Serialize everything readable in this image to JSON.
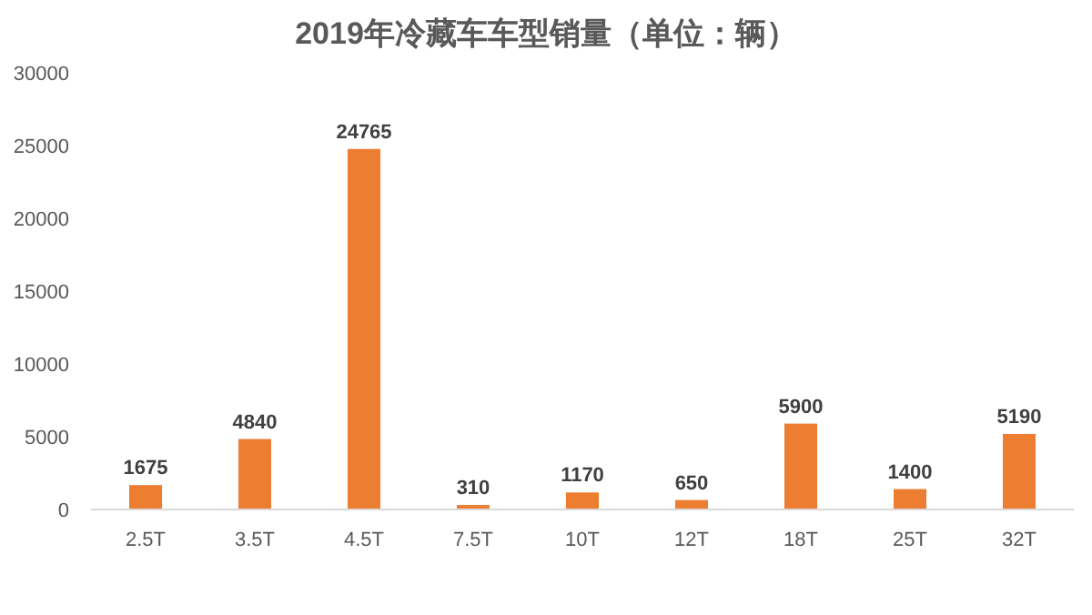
{
  "chart_data": {
    "type": "bar",
    "title": "2019年冷藏车车型销量（单位：辆）",
    "categories": [
      "2.5T",
      "3.5T",
      "4.5T",
      "7.5T",
      "10T",
      "12T",
      "18T",
      "25T",
      "32T"
    ],
    "values": [
      1675,
      4840,
      24765,
      310,
      1170,
      650,
      5900,
      1400,
      5190
    ],
    "color": "#ed7d31",
    "ylim": [
      0,
      30000
    ],
    "yticks": [
      0,
      5000,
      10000,
      15000,
      20000,
      25000,
      30000
    ],
    "data_labels": true
  }
}
